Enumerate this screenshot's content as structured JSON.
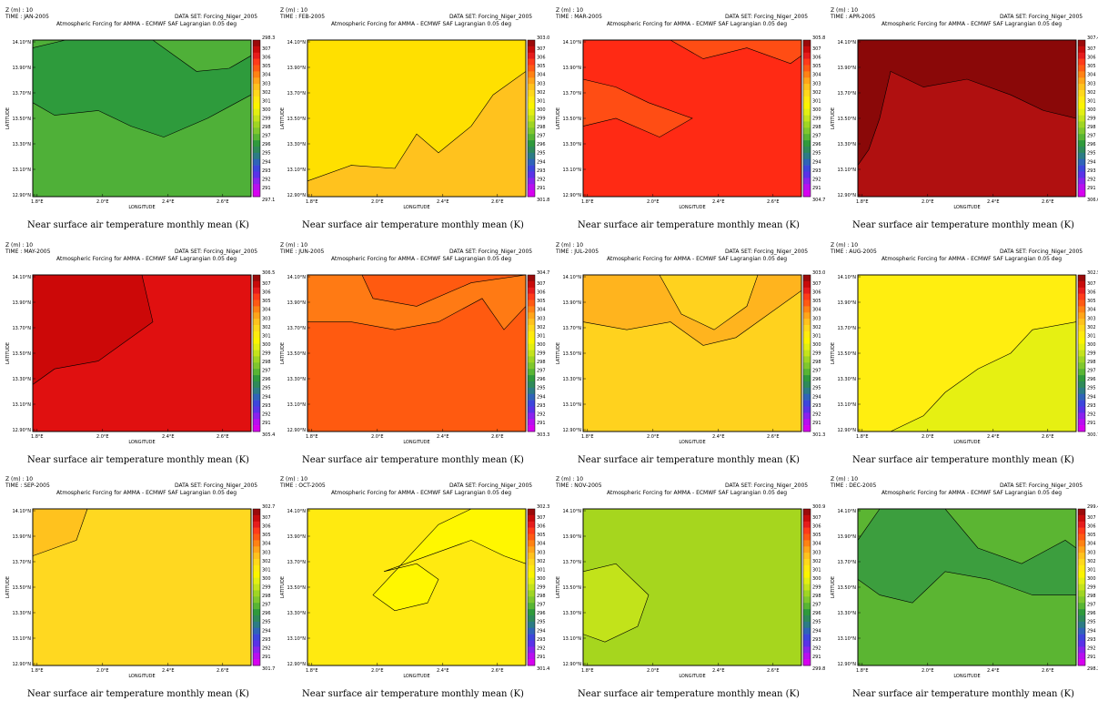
{
  "colorbar": {
    "levels": [
      "307",
      "306",
      "305",
      "304",
      "303",
      "302",
      "301",
      "300",
      "299",
      "298",
      "297",
      "296",
      "295",
      "294",
      "293",
      "292",
      "291"
    ],
    "colors": [
      "#9b0a0a",
      "#c80b0b",
      "#e61c1c",
      "#ff3b1a",
      "#ff5a14",
      "#ff8214",
      "#ffa51a",
      "#ffc21e",
      "#ffd81c",
      "#ffea10",
      "#fbf400",
      "#e2ef12",
      "#c4e31c",
      "#9fd524",
      "#7fc72e",
      "#58b534",
      "#2f9a3c",
      "#2e8a5a",
      "#2c7c86",
      "#2f64b8",
      "#3d46dc",
      "#5a32e8",
      "#8a22ee",
      "#b80ff0",
      "#d800f0"
    ]
  },
  "common": {
    "z_label": "Z (m) : 10",
    "dataset": "DATA SET: Forcing_Niger_2005",
    "subtitle": "Atmospheric Forcing for AMMA - ECMWF SAF Lagrangian 0.05 deg",
    "caption": "Near surface air temperature monthly mean (K)",
    "xlabel": "LONGITUDE",
    "ylabel": "LATITUDE",
    "xticks": [
      "1.8°E",
      "2.0°E",
      "2.4°E",
      "2.6°E"
    ],
    "yticks": [
      "14.10°N",
      "13.90°N",
      "13.70°N",
      "13.50°N",
      "13.30°N",
      "13.10°N",
      "12.90°N"
    ]
  },
  "chart_data": [
    {
      "type": "heatmap",
      "time": "TIME : JAN-2005",
      "cb_max": "298.36",
      "cb_min": "297.15",
      "base": "#4fb038",
      "patches": [
        {
          "c": "#2e9b3c",
          "shape": "jan"
        }
      ]
    },
    {
      "type": "heatmap",
      "time": "TIME : FEB-2005",
      "cb_max": "303.06",
      "cb_min": "301.82",
      "base": "#ffe000",
      "patches": [
        {
          "c": "#ffc21e",
          "shape": "feb"
        }
      ]
    },
    {
      "type": "heatmap",
      "time": "TIME : MAR-2005",
      "cb_max": "305.84",
      "cb_min": "304.71",
      "base": "#ff2a14",
      "patches": [
        {
          "c": "#ff4d14",
          "shape": "mar"
        }
      ]
    },
    {
      "type": "heatmap",
      "time": "TIME : APR-2005",
      "cb_max": "307.41",
      "cb_min": "306.07",
      "base": "#b01010",
      "patches": [
        {
          "c": "#8a0808",
          "shape": "apr"
        }
      ]
    },
    {
      "type": "heatmap",
      "time": "TIME : MAY-2005",
      "cb_max": "306.57",
      "cb_min": "305.49",
      "base": "#e01010",
      "patches": [
        {
          "c": "#cc0808",
          "shape": "may"
        }
      ]
    },
    {
      "type": "heatmap",
      "time": "TIME : JUN-2005",
      "cb_max": "304.76",
      "cb_min": "303.32",
      "base": "#ff5a10",
      "patches": [
        {
          "c": "#ff7a14",
          "shape": "jun"
        }
      ]
    },
    {
      "type": "heatmap",
      "time": "TIME : JUL-2005",
      "cb_max": "303.03",
      "cb_min": "301.32",
      "base": "#ffd21e",
      "patches": [
        {
          "c": "#ffb41e",
          "shape": "jul"
        }
      ]
    },
    {
      "type": "heatmap",
      "time": "TIME : AUG-2005",
      "cb_max": "302.57",
      "cb_min": "300.73",
      "base": "#ffee10",
      "patches": [
        {
          "c": "#e6f012",
          "shape": "aug"
        }
      ]
    },
    {
      "type": "heatmap",
      "time": "TIME : SEP-2005",
      "cb_max": "302.78",
      "cb_min": "301.73",
      "base": "#ffd820",
      "patches": [
        {
          "c": "#ffc21e",
          "shape": "sep"
        }
      ]
    },
    {
      "type": "heatmap",
      "time": "TIME : OCT-2005",
      "cb_max": "302.33",
      "cb_min": "301.44",
      "base": "#ffea10",
      "patches": [
        {
          "c": "#fff700",
          "shape": "oct"
        }
      ]
    },
    {
      "type": "heatmap",
      "time": "TIME : NOV-2005",
      "cb_max": "300.92",
      "cb_min": "299.86",
      "base": "#a6d61e",
      "patches": [
        {
          "c": "#c2e31a",
          "shape": "nov"
        }
      ]
    },
    {
      "type": "heatmap",
      "time": "TIME : DEC-2005",
      "cb_max": "299.43",
      "cb_min": "298.2",
      "base": "#5bb532",
      "patches": [
        {
          "c": "#3c9e3e",
          "shape": "dec"
        }
      ]
    }
  ]
}
